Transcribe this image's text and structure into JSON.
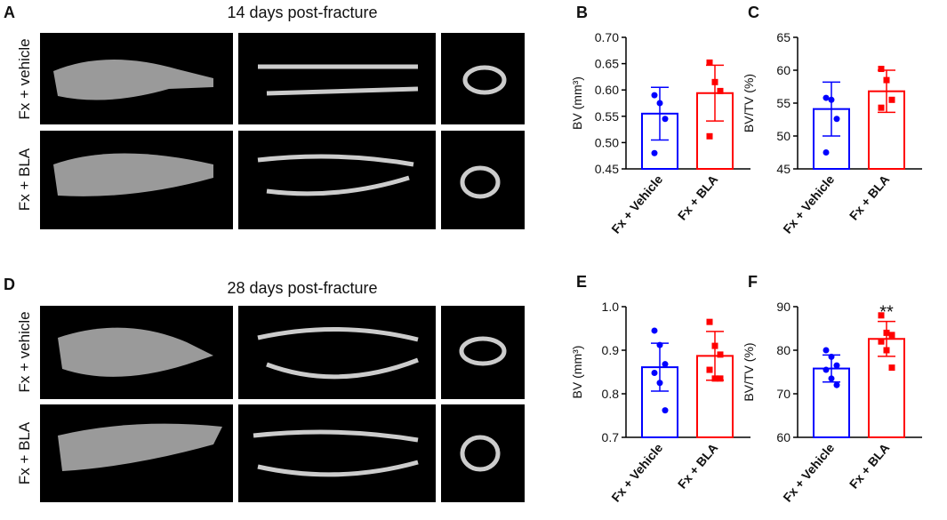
{
  "panel_a": {
    "label": "A",
    "title": "14 days post-fracture",
    "rows": [
      "Fx + vehicle",
      "Fx + BLA"
    ]
  },
  "panel_d": {
    "label": "D",
    "title": "28 days post-fracture",
    "rows": [
      "Fx + vehicle",
      "Fx + BLA"
    ]
  },
  "chart_data": [
    {
      "type": "bar",
      "label": "B",
      "ylabel": "BV (mm³)",
      "categories": [
        "Fx + Vehicle",
        "Fx + BLA"
      ],
      "colors": [
        "#0000ff",
        "#ff0000"
      ],
      "values": [
        0.555,
        0.594
      ],
      "errors": [
        0.05,
        0.053
      ],
      "points": [
        [
          0.59,
          0.575,
          0.545,
          0.48
        ],
        [
          0.652,
          0.615,
          0.598,
          0.512
        ]
      ],
      "ylim": [
        0.45,
        0.7
      ],
      "yticks": [
        {
          "value": 0.45,
          "label": "0.45"
        },
        {
          "value": 0.5,
          "label": "0.50"
        },
        {
          "value": 0.55,
          "label": "0.55"
        },
        {
          "value": 0.6,
          "label": "0.60"
        },
        {
          "value": 0.65,
          "label": "0.65"
        },
        {
          "value": 0.7,
          "label": "0.70"
        }
      ]
    },
    {
      "type": "bar",
      "label": "C",
      "ylabel": "BV/TV (%)",
      "categories": [
        "Fx + Vehicle",
        "Fx + BLA"
      ],
      "colors": [
        "#0000ff",
        "#ff0000"
      ],
      "values": [
        54.1,
        56.8
      ],
      "errors": [
        4.1,
        3.2
      ],
      "points": [
        [
          55.8,
          55.5,
          52.6,
          47.5
        ],
        [
          60.2,
          58.5,
          55.5,
          54.3
        ]
      ],
      "ylim": [
        45,
        65
      ],
      "yticks": [
        45,
        50,
        55,
        60,
        65
      ]
    },
    {
      "type": "bar",
      "label": "E",
      "ylabel": "BV (mm³)",
      "categories": [
        "Fx + Vehicle",
        "Fx + BLA"
      ],
      "colors": [
        "#0000ff",
        "#ff0000"
      ],
      "values": [
        0.861,
        0.887
      ],
      "errors": [
        0.055,
        0.056
      ],
      "points": [
        [
          0.945,
          0.912,
          0.868,
          0.848,
          0.825,
          0.762
        ],
        [
          0.965,
          0.91,
          0.89,
          0.855,
          0.835,
          0.835
        ]
      ],
      "ylim": [
        0.7,
        1.0
      ],
      "yticks": [
        {
          "value": 0.7,
          "label": "0.7"
        },
        {
          "value": 0.8,
          "label": "0.8"
        },
        {
          "value": 0.9,
          "label": "0.9"
        },
        {
          "value": 1.0,
          "label": "1.0"
        }
      ]
    },
    {
      "type": "bar",
      "label": "F",
      "ylabel": "BV/TV (%)",
      "categories": [
        "Fx + Vehicle",
        "Fx + BLA"
      ],
      "colors": [
        "#0000ff",
        "#ff0000"
      ],
      "values": [
        75.8,
        82.6
      ],
      "errors": [
        3.1,
        4.0
      ],
      "points": [
        [
          80,
          78.5,
          76.5,
          75.5,
          73.5,
          72
        ],
        [
          88,
          84,
          83.5,
          82,
          80,
          76
        ]
      ],
      "ylim": [
        60,
        90
      ],
      "yticks": [
        60,
        70,
        80,
        90
      ],
      "annotation": "**"
    }
  ]
}
